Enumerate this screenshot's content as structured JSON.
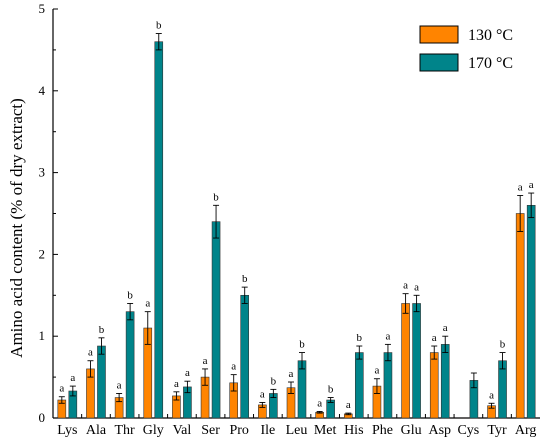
{
  "colors": {
    "series_130": "#ff8400",
    "series_170": "#00848a",
    "axis": "#000000"
  },
  "chart_data": {
    "type": "bar",
    "title": "",
    "xlabel": "",
    "ylabel": "Amino acid content (% of dry extract)",
    "ylim": [
      0,
      5
    ],
    "yticks": [
      "0",
      "1",
      "2",
      "3",
      "4",
      "5"
    ],
    "grid": false,
    "legend_position": "top-right",
    "categories": [
      "Lys",
      "Ala",
      "Thr",
      "Gly",
      "Val",
      "Ser",
      "Pro",
      "Ile",
      "Leu",
      "Met",
      "His",
      "Phe",
      "Glu",
      "Asp",
      "Cys",
      "Tyr",
      "Arg"
    ],
    "series": [
      {
        "name": "130 °C",
        "values": [
          0.22,
          0.6,
          0.25,
          1.1,
          0.27,
          0.5,
          0.43,
          0.16,
          0.37,
          0.07,
          0.05,
          0.39,
          1.4,
          0.8,
          0.0,
          0.15,
          2.5
        ],
        "errors": [
          0.04,
          0.1,
          0.05,
          0.2,
          0.05,
          0.1,
          0.1,
          0.03,
          0.07,
          0.01,
          0.01,
          0.09,
          0.12,
          0.08,
          0.0,
          0.03,
          0.22
        ],
        "letters": [
          "a",
          "a",
          "a",
          "a",
          "a",
          "a",
          "a",
          "a",
          "a",
          "a",
          "a",
          "a",
          "a",
          "a",
          "",
          "a",
          "a"
        ]
      },
      {
        "name": "170 °C",
        "values": [
          0.33,
          0.88,
          1.3,
          4.6,
          0.38,
          2.4,
          1.5,
          0.3,
          0.7,
          0.22,
          0.8,
          0.8,
          1.4,
          0.9,
          0.46,
          0.7,
          2.6
        ],
        "errors": [
          0.06,
          0.1,
          0.1,
          0.1,
          0.07,
          0.2,
          0.1,
          0.05,
          0.1,
          0.03,
          0.08,
          0.1,
          0.1,
          0.1,
          0.09,
          0.1,
          0.15
        ],
        "letters": [
          "a",
          "b",
          "b",
          "b",
          "a",
          "b",
          "b",
          "b",
          "b",
          "b",
          "b",
          "a",
          "a",
          "a",
          "",
          "b",
          "a"
        ]
      }
    ]
  },
  "legend": {
    "items": [
      {
        "label": "130 °C"
      },
      {
        "label": "170 °C"
      }
    ]
  }
}
